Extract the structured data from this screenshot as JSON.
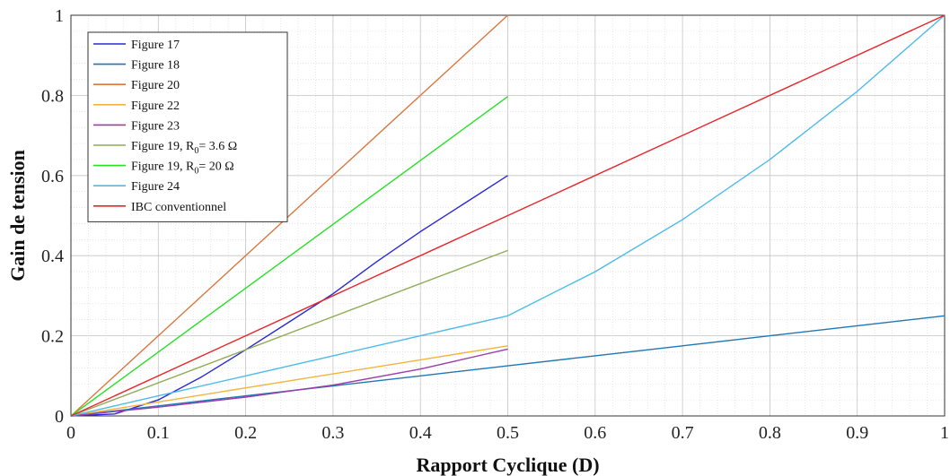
{
  "chart_data": {
    "type": "line",
    "xlabel": "Rapport Cyclique (D)",
    "ylabel": "Gain de tension",
    "xlim": [
      0,
      1
    ],
    "ylim": [
      0,
      1
    ],
    "xticks": [
      "0",
      "0.1",
      "0.2",
      "0.3",
      "0.4",
      "0.5",
      "0.6",
      "0.7",
      "0.8",
      "0.9",
      "1"
    ],
    "yticks": [
      "0",
      "0.2",
      "0.4",
      "0.6",
      "0.8",
      "1"
    ],
    "grid": true,
    "legend_position": "top-left",
    "series": [
      {
        "name": "Figure 17",
        "color": "#2a2ad4",
        "x": [
          0,
          0.05,
          0.1,
          0.15,
          0.2,
          0.25,
          0.3,
          0.35,
          0.4,
          0.45,
          0.5
        ],
        "y": [
          0,
          0.005,
          0.04,
          0.098,
          0.165,
          0.235,
          0.305,
          0.385,
          0.46,
          0.53,
          0.6
        ]
      },
      {
        "name": "Figure 18",
        "color": "#1f77b4",
        "x": [
          0,
          0.1,
          0.2,
          0.3,
          0.4,
          0.5,
          0.6,
          0.7,
          0.8,
          0.9,
          1.0
        ],
        "y": [
          0,
          0.025,
          0.05,
          0.075,
          0.1,
          0.125,
          0.15,
          0.175,
          0.2,
          0.225,
          0.25
        ]
      },
      {
        "name": "Figure 20",
        "color": "#d9773f",
        "x": [
          0,
          0.5
        ],
        "y": [
          0,
          1.0
        ]
      },
      {
        "name": "Figure 22",
        "color": "#f0b53c",
        "x": [
          0,
          0.1,
          0.2,
          0.3,
          0.4,
          0.5
        ],
        "y": [
          0,
          0.035,
          0.07,
          0.105,
          0.14,
          0.175
        ]
      },
      {
        "name": "Figure 23",
        "color": "#9b3fa8",
        "x": [
          0,
          0.1,
          0.2,
          0.3,
          0.4,
          0.5
        ],
        "y": [
          0,
          0.022,
          0.047,
          0.077,
          0.117,
          0.167
        ]
      },
      {
        "name": "Figure 19, R0= 3.6 Ω",
        "color": "#8fac55",
        "x": [
          0,
          0.5
        ],
        "y": [
          0,
          0.413
        ]
      },
      {
        "name": "Figure 19, R0= 20 Ω",
        "color": "#28e028",
        "x": [
          0,
          0.5
        ],
        "y": [
          0,
          0.797
        ]
      },
      {
        "name": "Figure 24",
        "color": "#4dbbea",
        "x": [
          0,
          0.1,
          0.2,
          0.3,
          0.4,
          0.5,
          0.6,
          0.7,
          0.8,
          0.9,
          1.0
        ],
        "y": [
          0,
          0.05,
          0.1,
          0.15,
          0.2,
          0.25,
          0.36,
          0.49,
          0.64,
          0.81,
          1.0
        ]
      },
      {
        "name": "IBC conventionnel",
        "color": "#e8252a",
        "x": [
          0,
          1.0
        ],
        "y": [
          0,
          1.0
        ]
      }
    ]
  },
  "legend": {
    "items": [
      {
        "label": "Figure 17"
      },
      {
        "label": "Figure 18"
      },
      {
        "label": "Figure 20"
      },
      {
        "label": "Figure 22"
      },
      {
        "label": "Figure 23"
      },
      {
        "label": "Figure 19, R",
        "sub": "0",
        "suffix": "= 3.6 Ω"
      },
      {
        "label": "Figure 19, R",
        "sub": "0",
        "suffix": "= 20 Ω"
      },
      {
        "label": "Figure 24"
      },
      {
        "label": "IBC conventionnel"
      }
    ]
  }
}
